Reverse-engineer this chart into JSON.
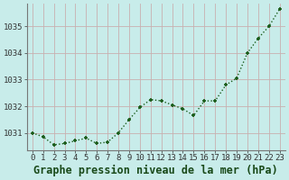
{
  "x": [
    0,
    1,
    2,
    3,
    4,
    5,
    6,
    7,
    8,
    9,
    10,
    11,
    12,
    13,
    14,
    15,
    16,
    17,
    18,
    19,
    20,
    21,
    22,
    23
  ],
  "y": [
    1031.0,
    1030.85,
    1030.55,
    1030.6,
    1030.7,
    1030.8,
    1030.6,
    1030.65,
    1031.0,
    1031.5,
    1031.95,
    1032.25,
    1032.2,
    1032.05,
    1031.9,
    1031.65,
    1032.2,
    1032.2,
    1032.8,
    1033.05,
    1034.0,
    1034.55,
    1035.0,
    1035.65
  ],
  "line_color": "#1a5c1a",
  "marker_color": "#1a5c1a",
  "bg_color": "#c8ecea",
  "grid_color": "#c8b0b0",
  "xlabel": "Graphe pression niveau de la mer (hPa)",
  "ylim_min": 1030.35,
  "ylim_max": 1035.85,
  "yticks": [
    1031,
    1032,
    1033,
    1034,
    1035
  ],
  "xticks": [
    0,
    1,
    2,
    3,
    4,
    5,
    6,
    7,
    8,
    9,
    10,
    11,
    12,
    13,
    14,
    15,
    16,
    17,
    18,
    19,
    20,
    21,
    22,
    23
  ],
  "xlabel_fontsize": 8.5,
  "tick_fontsize": 6.5,
  "line_width": 1.0,
  "marker_size": 3.5
}
